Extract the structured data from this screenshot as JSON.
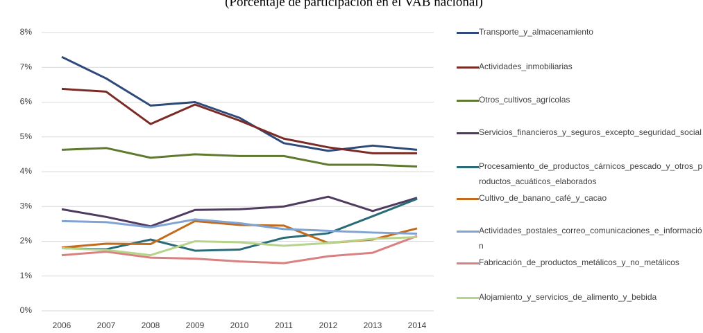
{
  "chart_data": {
    "type": "line",
    "title": "(Porcentaje de participación en el VAB nacional)",
    "categories": [
      "2006",
      "2007",
      "2008",
      "2009",
      "2010",
      "2011",
      "2012",
      "2013",
      "2014"
    ],
    "ylim": [
      0,
      8
    ],
    "yticks": [
      {
        "value": 0,
        "label": "0%"
      },
      {
        "value": 1,
        "label": "1%"
      },
      {
        "value": 2,
        "label": "2%"
      },
      {
        "value": 3,
        "label": "3%"
      },
      {
        "value": 4,
        "label": "4%"
      },
      {
        "value": 5,
        "label": "5%"
      },
      {
        "value": 6,
        "label": "6%"
      },
      {
        "value": 7,
        "label": "7%"
      },
      {
        "value": 8,
        "label": "8%"
      }
    ],
    "grid": true,
    "series": [
      {
        "name": "Transporte_y_almacenamiento",
        "color": "#2e4a78",
        "values": [
          7.3,
          6.68,
          5.9,
          6.0,
          5.55,
          4.82,
          4.6,
          4.75,
          4.63
        ]
      },
      {
        "name": "Actividades_inmobiliarias",
        "color": "#7b2b26",
        "values": [
          6.38,
          6.3,
          5.37,
          5.93,
          5.47,
          4.95,
          4.7,
          4.53,
          4.53
        ]
      },
      {
        "name": "Otros_cultivos_agrícolas",
        "color": "#5f7a2e",
        "values": [
          4.63,
          4.68,
          4.4,
          4.5,
          4.45,
          4.45,
          4.2,
          4.2,
          4.15
        ]
      },
      {
        "name": "Servicios_financieros_y_seguros_excepto_seguridad_social",
        "color": "#4f3b60",
        "values": [
          2.92,
          2.7,
          2.43,
          2.9,
          2.92,
          3.0,
          3.28,
          2.87,
          3.25
        ]
      },
      {
        "name": "Procesamiento_de_productos_cárnicos_pescado_y_otros_productos_acuáticos_elaborados",
        "color": "#2a6b78",
        "values": [
          1.8,
          1.77,
          2.05,
          1.73,
          1.76,
          2.1,
          2.23,
          2.72,
          3.22
        ]
      },
      {
        "name": "Cultivo_de_banano_café_y_cacao",
        "color": "#c36a1b",
        "values": [
          1.82,
          1.93,
          1.92,
          2.58,
          2.47,
          2.45,
          1.95,
          2.05,
          2.37
        ]
      },
      {
        "name": "Actividades_postales_correo_comunicaciones_e_información",
        "color": "#7fa3d2",
        "values": [
          2.58,
          2.55,
          2.4,
          2.63,
          2.52,
          2.35,
          2.3,
          2.25,
          2.22
        ]
      },
      {
        "name": "Fabricación_de_productos_metálicos_y_no_metálicos",
        "color": "#d98080",
        "values": [
          1.6,
          1.7,
          1.53,
          1.5,
          1.42,
          1.37,
          1.57,
          1.67,
          2.15
        ]
      },
      {
        "name": "Alojamiento_y_servicios_de_alimento_y_bebida",
        "color": "#b5d48a",
        "values": [
          1.8,
          1.75,
          1.6,
          2.0,
          1.97,
          1.87,
          1.95,
          2.07,
          2.12
        ]
      }
    ]
  }
}
